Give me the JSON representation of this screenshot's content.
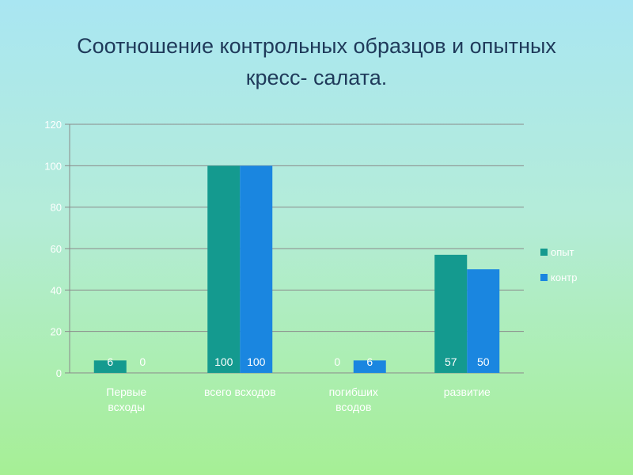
{
  "slide": {
    "title_line1": "Соотношение контрольных образцов и опытных",
    "title_line2": "кресс- салата."
  },
  "chart_data": {
    "type": "bar",
    "categories": [
      [
        "Первые",
        "всходы"
      ],
      [
        "всего всходов"
      ],
      [
        "погибших",
        "всодов"
      ],
      [
        "развитие"
      ]
    ],
    "series": [
      {
        "name": "опыт",
        "values": [
          6,
          100,
          0,
          57
        ],
        "labels": [
          "6",
          "100",
          "0",
          "57"
        ],
        "color": "#149a8f"
      },
      {
        "name": "контр",
        "values": [
          0,
          100,
          6,
          50
        ],
        "labels": [
          "0",
          "100",
          "6",
          "50"
        ],
        "color": "#1a86e0"
      }
    ],
    "ylim": [
      0,
      120
    ],
    "yticks": [
      0,
      20,
      40,
      60,
      80,
      100,
      120
    ],
    "grid": true,
    "legend": "right"
  }
}
